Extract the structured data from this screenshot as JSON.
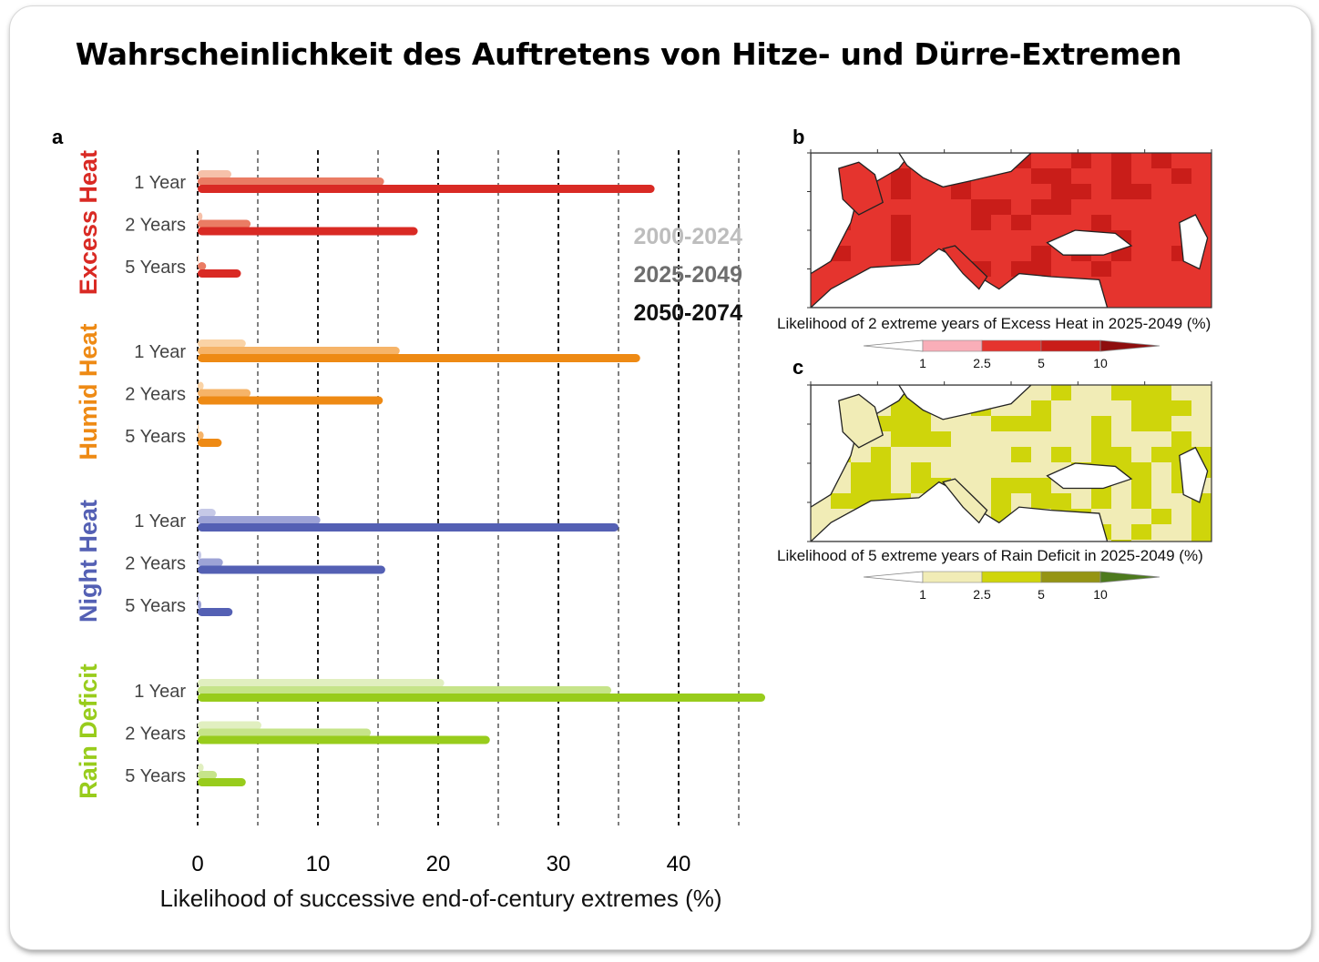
{
  "title": "Wahrscheinlichkeit des Auftretens von Hitze- und Dürre-Extremen",
  "panel_a": {
    "label": "a",
    "colors": {
      "Excess Heat": [
        "#f6c1aa",
        "#ea7c64",
        "#d92a24"
      ],
      "Humid Heat": [
        "#fad3a6",
        "#f6b469",
        "#ee8a14"
      ],
      "Night Heat": [
        "#c6c9e7",
        "#9da3d6",
        "#5460b4"
      ],
      "Rain Deficit": [
        "#e1efc0",
        "#c6e48a",
        "#98cc1c"
      ]
    },
    "legend": [
      {
        "label": "2000-2024",
        "color": "#bdbdbd"
      },
      {
        "label": "2025-2049",
        "color": "#6e6e6e"
      },
      {
        "label": "2050-2074",
        "color": "#111111"
      }
    ]
  },
  "chart_data": {
    "type": "bar",
    "orientation": "horizontal",
    "xlabel": "Likelihood of successive end-of-century extremes (%)",
    "xlim": [
      0,
      47
    ],
    "xticks": [
      0,
      10,
      20,
      30,
      40
    ],
    "gridlines_dashed": [
      0,
      5,
      10,
      15,
      20,
      25,
      30,
      35,
      40,
      45
    ],
    "groups": [
      {
        "name": "Excess Heat",
        "rows": [
          {
            "label": "1 Year",
            "values": [
              2.8,
              15.5,
              38.0
            ]
          },
          {
            "label": "2 Years",
            "values": [
              0.4,
              4.4,
              18.3
            ]
          },
          {
            "label": "5 Years",
            "values": [
              0.1,
              0.7,
              3.6
            ]
          }
        ]
      },
      {
        "name": "Humid Heat",
        "rows": [
          {
            "label": "1 Year",
            "values": [
              4.0,
              16.8,
              36.8
            ]
          },
          {
            "label": "2 Years",
            "values": [
              0.5,
              4.4,
              15.4
            ]
          },
          {
            "label": "5 Years",
            "values": [
              0.1,
              0.5,
              2.0
            ]
          }
        ]
      },
      {
        "name": "Night Heat",
        "rows": [
          {
            "label": "1 Year",
            "values": [
              1.5,
              10.2,
              35.0
            ]
          },
          {
            "label": "2 Years",
            "values": [
              0.3,
              2.1,
              15.6
            ]
          },
          {
            "label": "5 Years",
            "values": [
              0.1,
              0.3,
              2.9
            ]
          }
        ]
      },
      {
        "name": "Rain Deficit",
        "rows": [
          {
            "label": "1 Year",
            "values": [
              20.5,
              34.4,
              47.2
            ]
          },
          {
            "label": "2 Years",
            "values": [
              5.3,
              14.4,
              24.3
            ]
          },
          {
            "label": "5 Years",
            "values": [
              0.5,
              1.6,
              4.0
            ]
          }
        ]
      }
    ],
    "series": [
      {
        "name": "2000-2024"
      },
      {
        "name": "2025-2049"
      },
      {
        "name": "2050-2074"
      }
    ]
  },
  "panel_b": {
    "label": "b",
    "caption": "Likelihood of 2 extreme years of Excess Heat in 2025-2049 (%)",
    "colorbar": {
      "ticks": [
        "1",
        "2.5",
        "5",
        "10"
      ],
      "colors": [
        "#ffffff",
        "#f9aeb8",
        "#e5342e",
        "#c91d19",
        "#8e0e0e"
      ]
    }
  },
  "panel_c": {
    "label": "c",
    "caption": "Likelihood of 5 extreme years of Rain Deficit in 2025-2049 (%)",
    "colorbar": {
      "ticks": [
        "1",
        "2.5",
        "5",
        "10"
      ],
      "colors": [
        "#ffffff",
        "#f1ecb6",
        "#cfd50b",
        "#959414",
        "#4d7a1d"
      ]
    }
  }
}
